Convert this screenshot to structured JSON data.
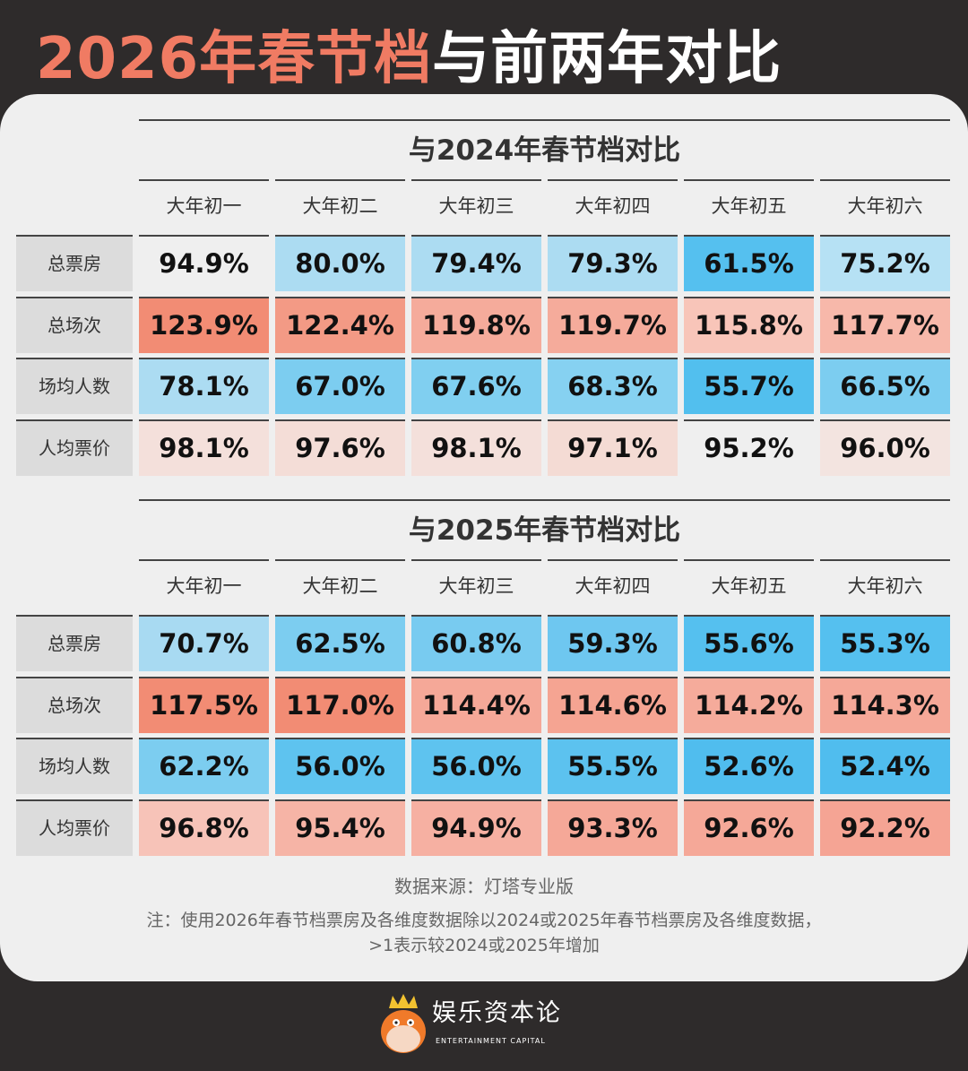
{
  "title": {
    "highlight": "2026年春节档",
    "rest": "与前两年对比"
  },
  "columns": [
    "大年初一",
    "大年初二",
    "大年初三",
    "大年初四",
    "大年初五",
    "大年初六"
  ],
  "sections": [
    {
      "title": "与2024年春节档对比",
      "rows": [
        {
          "label": "总票房",
          "values": [
            "94.9%",
            "80.0%",
            "79.4%",
            "79.3%",
            "61.5%",
            "75.2%"
          ],
          "colors": [
            "#efefef",
            "#acdcf2",
            "#acdcf2",
            "#acdcf2",
            "#55c0ef",
            "#b6e1f4"
          ]
        },
        {
          "label": "总场次",
          "values": [
            "123.9%",
            "122.4%",
            "119.8%",
            "119.7%",
            "115.8%",
            "117.7%"
          ],
          "colors": [
            "#f28c74",
            "#f39a85",
            "#f5ab9b",
            "#f5ab9b",
            "#f8c5b9",
            "#f7b8aa"
          ]
        },
        {
          "label": "场均人数",
          "values": [
            "78.1%",
            "67.0%",
            "67.6%",
            "68.3%",
            "55.7%",
            "66.5%"
          ],
          "colors": [
            "#acdcf2",
            "#7ccdf0",
            "#80cff0",
            "#86d1f1",
            "#52bfee",
            "#7ccdf0"
          ]
        },
        {
          "label": "人均票价",
          "values": [
            "98.1%",
            "97.6%",
            "98.1%",
            "97.1%",
            "95.2%",
            "96.0%"
          ],
          "colors": [
            "#f4e0db",
            "#f4ddd7",
            "#f4e0db",
            "#f4dbd4",
            "#efefef",
            "#f3e4e0"
          ]
        }
      ]
    },
    {
      "title": "与2025年春节档对比",
      "rows": [
        {
          "label": "总票房",
          "values": [
            "70.7%",
            "62.5%",
            "60.8%",
            "59.3%",
            "55.6%",
            "55.3%"
          ],
          "colors": [
            "#a8daf2",
            "#7ccdf0",
            "#78cbf0",
            "#6ec7f0",
            "#55c0ef",
            "#55c0ef"
          ]
        },
        {
          "label": "总场次",
          "values": [
            "117.5%",
            "117.0%",
            "114.4%",
            "114.6%",
            "114.2%",
            "114.3%"
          ],
          "colors": [
            "#f28c74",
            "#f28c74",
            "#f5a898",
            "#f5a492",
            "#f5ab9b",
            "#f5a898"
          ]
        },
        {
          "label": "场均人数",
          "values": [
            "62.2%",
            "56.0%",
            "56.0%",
            "55.5%",
            "52.6%",
            "52.4%"
          ],
          "colors": [
            "#7ccdf0",
            "#5ec3ef",
            "#5ec3ef",
            "#5cc2ef",
            "#50bdee",
            "#50bdee"
          ]
        },
        {
          "label": "人均票价",
          "values": [
            "96.8%",
            "95.4%",
            "94.9%",
            "93.3%",
            "92.6%",
            "92.2%"
          ],
          "colors": [
            "#f7c3b8",
            "#f6b4a6",
            "#f6b0a2",
            "#f5a898",
            "#f5a898",
            "#f5a494"
          ]
        }
      ]
    }
  ],
  "footer": {
    "source": "数据来源：灯塔专业版",
    "note_line1": "注：使用2026年春节档票房及各维度数据除以2024或2025年春节档票房及各维度数据，",
    "note_line2": ">1表示较2024或2025年增加"
  },
  "logo": {
    "name": "娱乐资本论",
    "subtitle": "ENTERTAINMENT CAPITAL"
  }
}
